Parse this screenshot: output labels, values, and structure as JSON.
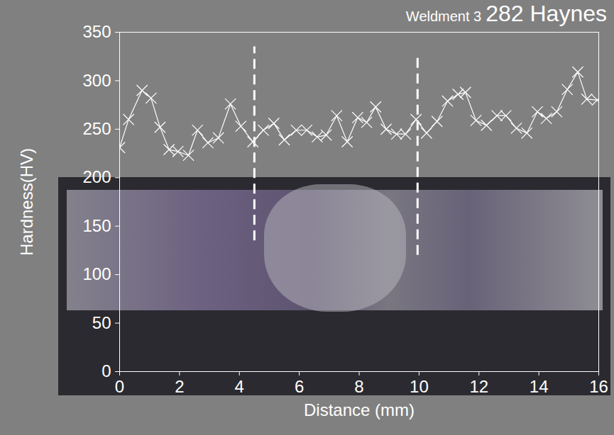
{
  "chart_data": {
    "type": "line",
    "title": "Weldment 3",
    "subtitle": "282 Haynes",
    "x_label": "Distance (mm)",
    "y_label": "Hardness(HV)",
    "x": [
      0,
      0.3,
      0.75,
      1.05,
      1.35,
      1.65,
      1.95,
      2.3,
      2.6,
      2.95,
      3.3,
      3.7,
      4.05,
      4.45,
      4.8,
      5.15,
      5.5,
      5.9,
      6.25,
      6.6,
      6.9,
      7.25,
      7.6,
      7.95,
      8.25,
      8.55,
      8.9,
      9.25,
      9.55,
      9.9,
      10.25,
      10.6,
      10.95,
      11.3,
      11.55,
      11.9,
      12.25,
      12.6,
      12.9,
      13.25,
      13.6,
      13.95,
      14.25,
      14.6,
      14.95,
      15.3,
      15.6,
      15.95
    ],
    "values": [
      231,
      260,
      290,
      282,
      252,
      229,
      227,
      223,
      249,
      236,
      241,
      276,
      253,
      237,
      249,
      256,
      239,
      249,
      249,
      242,
      244,
      264,
      237,
      262,
      257,
      273,
      250,
      245,
      245,
      260,
      246,
      258,
      279,
      286,
      288,
      259,
      254,
      264,
      264,
      251,
      246,
      268,
      261,
      268,
      291,
      309,
      281,
      280
    ],
    "color": "#ffffff",
    "marker": "x",
    "xlim": [
      0,
      16
    ],
    "ylim": [
      0,
      350
    ],
    "xticks": [
      0,
      2,
      4,
      6,
      8,
      10,
      12,
      14,
      16
    ],
    "yticks": [
      0,
      50,
      100,
      150,
      200,
      250,
      300,
      350
    ],
    "grid": false,
    "vlines": [
      {
        "x": 4.5,
        "y1": 135,
        "y2": 335
      },
      {
        "x": 9.95,
        "y1": 120,
        "y2": 328
      }
    ]
  }
}
